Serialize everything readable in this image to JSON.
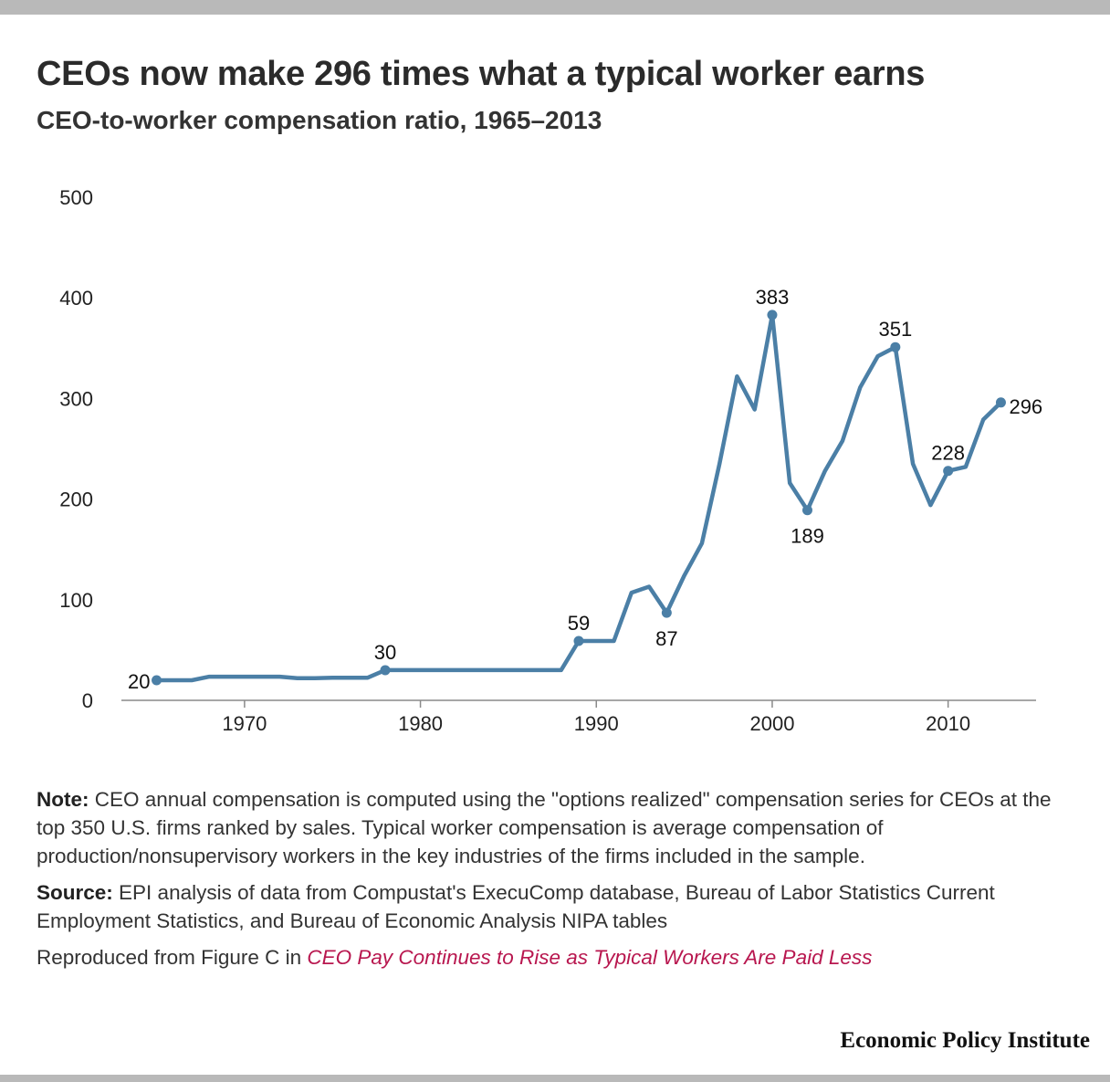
{
  "header": {
    "title": "CEOs now make 296 times what a typical worker earns",
    "subtitle": "CEO-to-worker compensation ratio, 1965–2013"
  },
  "chart_data": {
    "type": "line",
    "title": "CEOs now make 296 times what a typical worker earns",
    "subtitle": "CEO-to-worker compensation ratio, 1965–2013",
    "xlabel": "",
    "ylabel": "",
    "xlim": [
      1963,
      2015
    ],
    "ylim": [
      0,
      500
    ],
    "x_ticks": [
      1970,
      1980,
      1990,
      2000,
      2010
    ],
    "y_ticks": [
      0,
      100,
      200,
      300,
      400,
      500
    ],
    "grid": false,
    "line_color": "#4b7fa6",
    "series": [
      {
        "name": "CEO-to-worker compensation ratio",
        "x": [
          1965,
          1966,
          1967,
          1968,
          1969,
          1970,
          1971,
          1972,
          1973,
          1974,
          1975,
          1976,
          1977,
          1978,
          1979,
          1980,
          1981,
          1982,
          1983,
          1984,
          1985,
          1986,
          1987,
          1988,
          1989,
          1990,
          1991,
          1992,
          1993,
          1994,
          1995,
          1996,
          1997,
          1998,
          1999,
          2000,
          2001,
          2002,
          2003,
          2004,
          2005,
          2006,
          2007,
          2008,
          2009,
          2010,
          2011,
          2012,
          2013
        ],
        "values": [
          20,
          20,
          20,
          23.5,
          23.5,
          23.5,
          23.5,
          23.5,
          22,
          22,
          22.5,
          22.5,
          22.5,
          30,
          30,
          30,
          30,
          30,
          30,
          30,
          30,
          30,
          30,
          30,
          59,
          59,
          59,
          107,
          113,
          87,
          124,
          156,
          235,
          322,
          289,
          383,
          216,
          189,
          228,
          258,
          311,
          342,
          351,
          235,
          194,
          228,
          232,
          279,
          296
        ]
      }
    ],
    "annotations": [
      {
        "x": 1965,
        "y": 20,
        "label": "20",
        "position": "left"
      },
      {
        "x": 1978,
        "y": 30,
        "label": "30",
        "position": "above"
      },
      {
        "x": 1989,
        "y": 59,
        "label": "59",
        "position": "above"
      },
      {
        "x": 1994,
        "y": 87,
        "label": "87",
        "position": "below"
      },
      {
        "x": 2000,
        "y": 383,
        "label": "383",
        "position": "above"
      },
      {
        "x": 2002,
        "y": 189,
        "label": "189",
        "position": "below"
      },
      {
        "x": 2007,
        "y": 351,
        "label": "351",
        "position": "above"
      },
      {
        "x": 2010,
        "y": 228,
        "label": "228",
        "position": "above"
      },
      {
        "x": 2013,
        "y": 296,
        "label": "296",
        "position": "right"
      }
    ]
  },
  "notes": {
    "note_label": "Note:",
    "note_text": " CEO annual compensation is computed using the \"options realized\" compensation series for CEOs at the top 350 U.S. firms ranked by sales. Typical worker compensation is average compensation of production/nonsupervisory workers in the key industries of the firms included in the sample.",
    "source_label": "Source:",
    "source_text": " EPI analysis of data from Compustat's ExecuComp database, Bureau of Labor Statistics Current Employment Statistics, and Bureau of Economic Analysis NIPA tables",
    "reproduced_text": "Reproduced from Figure C in ",
    "reproduced_link": "CEO Pay Continues to Rise as Typical Workers Are Paid Less"
  },
  "brand": {
    "name": "Economic Policy Institute"
  }
}
